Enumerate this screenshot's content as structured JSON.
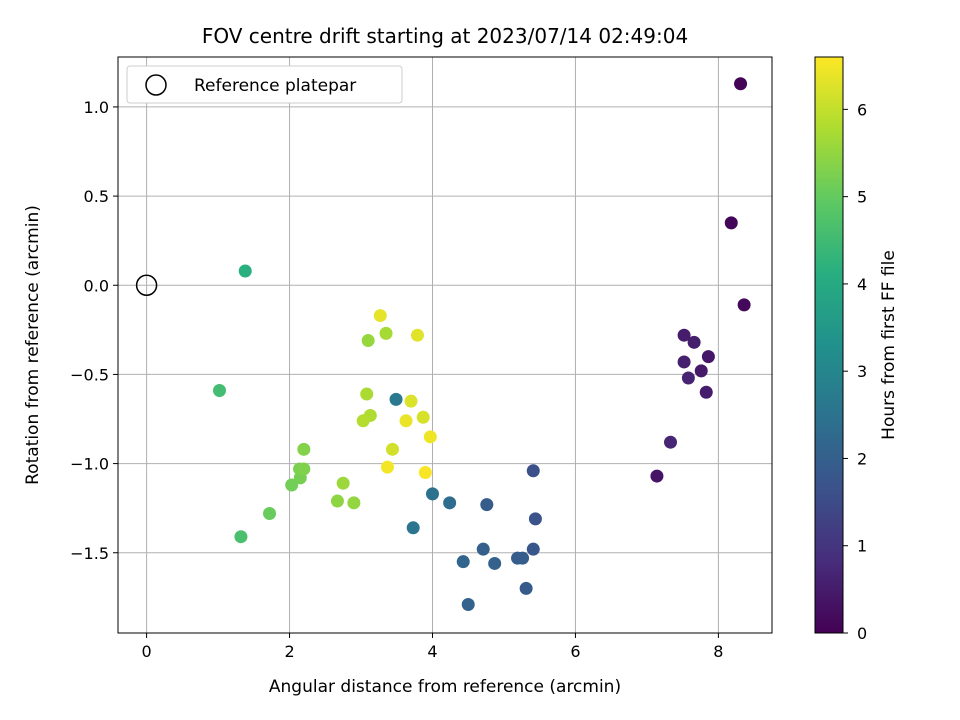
{
  "chart_data": {
    "type": "scatter",
    "title": "FOV centre drift starting at 2023/07/14 02:49:04",
    "xlabel": "Angular distance from reference (arcmin)",
    "ylabel": "Rotation from reference (arcmin)",
    "xlim": [
      -0.4,
      8.75
    ],
    "ylim": [
      -1.95,
      1.28
    ],
    "xticks": [
      0,
      2,
      4,
      6,
      8
    ],
    "xtick_labels": [
      "0",
      "2",
      "4",
      "6",
      "8"
    ],
    "yticks": [
      1.0,
      0.5,
      0.0,
      -0.5,
      -1.0,
      -1.5
    ],
    "ytick_labels": [
      "1.0",
      "0.5",
      "0.0",
      "−0.5",
      "−1.0",
      "−1.5"
    ],
    "grid": true,
    "legend": {
      "position": "top-left",
      "entries": [
        "Reference platepar"
      ]
    },
    "reference_point": {
      "x": 0,
      "y": 0,
      "label": "Reference platepar"
    },
    "colorbar": {
      "label": "Hours from first FF file",
      "range": [
        0,
        6.6
      ],
      "ticks": [
        0,
        1,
        2,
        3,
        4,
        5,
        6
      ],
      "tick_labels": [
        "0",
        "1",
        "2",
        "3",
        "4",
        "5",
        "6"
      ],
      "colormap": "viridis"
    },
    "points": [
      {
        "x": 8.31,
        "y": 1.13,
        "c": 0.05
      },
      {
        "x": 8.18,
        "y": 0.35,
        "c": 0.1
      },
      {
        "x": 8.36,
        "y": -0.11,
        "c": 0.15
      },
      {
        "x": 7.52,
        "y": -0.28,
        "c": 0.5
      },
      {
        "x": 7.66,
        "y": -0.32,
        "c": 0.55
      },
      {
        "x": 7.86,
        "y": -0.4,
        "c": 0.4
      },
      {
        "x": 7.52,
        "y": -0.43,
        "c": 0.6
      },
      {
        "x": 7.76,
        "y": -0.48,
        "c": 0.45
      },
      {
        "x": 7.58,
        "y": -0.52,
        "c": 0.65
      },
      {
        "x": 7.83,
        "y": -0.6,
        "c": 0.5
      },
      {
        "x": 7.33,
        "y": -0.88,
        "c": 0.7
      },
      {
        "x": 7.14,
        "y": -1.07,
        "c": 0.35
      },
      {
        "x": 5.41,
        "y": -1.04,
        "c": 1.6
      },
      {
        "x": 5.44,
        "y": -1.31,
        "c": 1.7
      },
      {
        "x": 5.41,
        "y": -1.48,
        "c": 1.8
      },
      {
        "x": 5.19,
        "y": -1.53,
        "c": 1.9
      },
      {
        "x": 5.26,
        "y": -1.53,
        "c": 1.95
      },
      {
        "x": 5.31,
        "y": -1.7,
        "c": 1.85
      },
      {
        "x": 4.76,
        "y": -1.23,
        "c": 1.9
      },
      {
        "x": 4.71,
        "y": -1.48,
        "c": 2.0
      },
      {
        "x": 4.87,
        "y": -1.56,
        "c": 2.05
      },
      {
        "x": 4.43,
        "y": -1.55,
        "c": 2.15
      },
      {
        "x": 4.5,
        "y": -1.79,
        "c": 2.1
      },
      {
        "x": 4.24,
        "y": -1.22,
        "c": 2.35
      },
      {
        "x": 4.0,
        "y": -1.17,
        "c": 2.45
      },
      {
        "x": 3.73,
        "y": -1.36,
        "c": 2.55
      },
      {
        "x": 3.49,
        "y": -0.64,
        "c": 2.65
      },
      {
        "x": 1.38,
        "y": 0.08,
        "c": 4.15
      },
      {
        "x": 1.02,
        "y": -0.59,
        "c": 4.55
      },
      {
        "x": 1.32,
        "y": -1.41,
        "c": 4.65
      },
      {
        "x": 1.72,
        "y": -1.28,
        "c": 5.05
      },
      {
        "x": 2.03,
        "y": -1.12,
        "c": 5.15
      },
      {
        "x": 2.15,
        "y": -1.08,
        "c": 5.2
      },
      {
        "x": 2.14,
        "y": -1.03,
        "c": 5.25
      },
      {
        "x": 2.2,
        "y": -1.03,
        "c": 5.3
      },
      {
        "x": 2.2,
        "y": -0.92,
        "c": 5.35
      },
      {
        "x": 2.67,
        "y": -1.21,
        "c": 5.45
      },
      {
        "x": 2.9,
        "y": -1.22,
        "c": 5.5
      },
      {
        "x": 2.75,
        "y": -1.11,
        "c": 5.6
      },
      {
        "x": 3.1,
        "y": -0.31,
        "c": 5.55
      },
      {
        "x": 3.35,
        "y": -0.27,
        "c": 5.7
      },
      {
        "x": 3.08,
        "y": -0.61,
        "c": 5.75
      },
      {
        "x": 3.13,
        "y": -0.73,
        "c": 5.8
      },
      {
        "x": 3.03,
        "y": -0.76,
        "c": 5.85
      },
      {
        "x": 3.27,
        "y": -0.17,
        "c": 6.35
      },
      {
        "x": 3.79,
        "y": -0.28,
        "c": 6.3
      },
      {
        "x": 3.7,
        "y": -0.65,
        "c": 6.25
      },
      {
        "x": 3.87,
        "y": -0.74,
        "c": 6.2
      },
      {
        "x": 3.63,
        "y": -0.76,
        "c": 6.4
      },
      {
        "x": 3.44,
        "y": -0.92,
        "c": 6.15
      },
      {
        "x": 3.97,
        "y": -0.85,
        "c": 6.45
      },
      {
        "x": 3.37,
        "y": -1.02,
        "c": 6.5
      },
      {
        "x": 3.9,
        "y": -1.05,
        "c": 6.55
      }
    ]
  }
}
